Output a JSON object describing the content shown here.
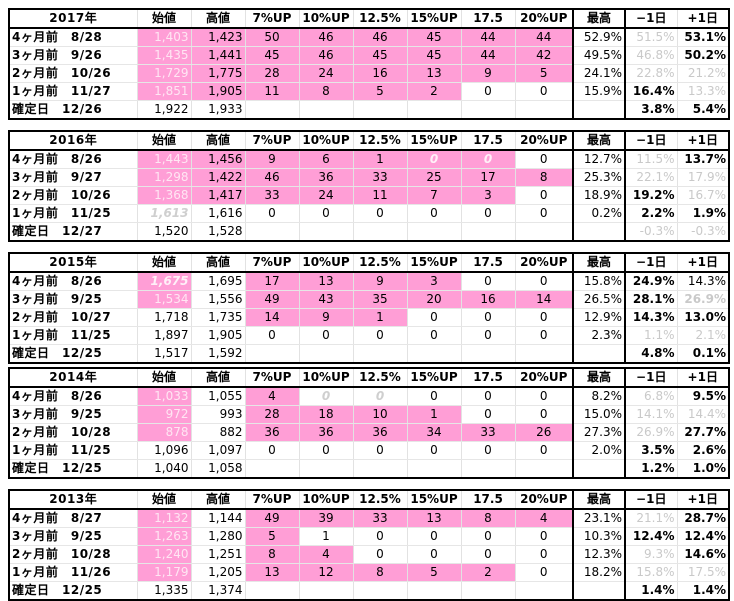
{
  "headers": [
    "始値",
    "高値",
    "7%UP",
    "10%UP",
    "12.5%",
    "15%UP",
    "17.5",
    "20%UP",
    "最高",
    "−1日",
    "+1日"
  ],
  "colors": {
    "pink": "#ff9ed6",
    "light_text": "#c9c9c9",
    "border": "#000000"
  },
  "blocks": [
    {
      "title": "2017年",
      "rows": [
        {
          "label": "4ヶ月前　8/28",
          "open": "1,403",
          "high": "1,423",
          "c7": "50",
          "c10": "46",
          "c125": "46",
          "c15": "45",
          "c175": "44",
          "c20": "44",
          "max": "52.9%",
          "m1": "51.5%",
          "p1": "53.1%"
        },
        {
          "label": "3ヶ月前　9/26",
          "open": "1,435",
          "high": "1,441",
          "c7": "45",
          "c10": "46",
          "c125": "45",
          "c15": "45",
          "c175": "44",
          "c20": "42",
          "max": "49.5%",
          "m1": "46.8%",
          "p1": "50.2%"
        },
        {
          "label": "2ヶ月前　10/26",
          "open": "1,729",
          "high": "1,775",
          "c7": "28",
          "c10": "24",
          "c125": "16",
          "c15": "13",
          "c175": "9",
          "c20": "5",
          "max": "24.1%",
          "m1": "22.8%",
          "p1": "21.2%"
        },
        {
          "label": "1ヶ月前　11/27",
          "open": "1,851",
          "high": "1,905",
          "c7": "11",
          "c10": "8",
          "c125": "5",
          "c15": "2",
          "c175": "0",
          "c20": "0",
          "max": "15.9%",
          "m1": "16.4%",
          "p1": "13.3%"
        }
      ],
      "final": {
        "label": "確定日　12/26",
        "open": "1,922",
        "high": "1,933",
        "m1": "3.8%",
        "p1": "5.4%"
      }
    },
    {
      "title": "2016年",
      "rows": [
        {
          "label": "4ヶ月前　8/26",
          "open": "1,443",
          "high": "1,456",
          "c7": "9",
          "c10": "6",
          "c125": "1",
          "c15": "0",
          "c175": "0",
          "c20": "0",
          "max": "12.7%",
          "m1": "11.5%",
          "p1": "13.7%"
        },
        {
          "label": "3ヶ月前　9/27",
          "open": "1,298",
          "high": "1,422",
          "c7": "46",
          "c10": "36",
          "c125": "33",
          "c15": "25",
          "c175": "17",
          "c20": "8",
          "max": "25.3%",
          "m1": "22.1%",
          "p1": "17.9%"
        },
        {
          "label": "2ヶ月前　10/26",
          "open": "1,368",
          "high": "1,417",
          "c7": "33",
          "c10": "24",
          "c125": "11",
          "c15": "7",
          "c175": "3",
          "c20": "0",
          "max": "18.9%",
          "m1": "19.2%",
          "p1": "16.7%"
        },
        {
          "label": "1ヶ月前　11/25",
          "open": "1,613",
          "high": "1,616",
          "c7": "0",
          "c10": "0",
          "c125": "0",
          "c15": "0",
          "c175": "0",
          "c20": "0",
          "max": "0.2%",
          "m1": "2.2%",
          "p1": "1.9%"
        }
      ],
      "final": {
        "label": "確定日　12/27",
        "open": "1,520",
        "high": "1,528",
        "m1": "-0.3%",
        "p1": "-0.3%"
      }
    },
    {
      "title": "2015年",
      "rows": [
        {
          "label": "4ヶ月前　8/26",
          "open": "1,675",
          "high": "1,695",
          "c7": "17",
          "c10": "13",
          "c125": "9",
          "c15": "3",
          "c175": "0",
          "c20": "0",
          "max": "15.8%",
          "m1": "24.9%",
          "p1": "14.3%"
        },
        {
          "label": "3ヶ月前　9/25",
          "open": "1,534",
          "high": "1,556",
          "c7": "49",
          "c10": "43",
          "c125": "35",
          "c15": "20",
          "c175": "16",
          "c20": "14",
          "max": "26.5%",
          "m1": "28.1%",
          "p1": "26.9%"
        },
        {
          "label": "2ヶ月前　10/27",
          "open": "1,718",
          "high": "1,735",
          "c7": "14",
          "c10": "9",
          "c125": "1",
          "c15": "0",
          "c175": "0",
          "c20": "0",
          "max": "12.9%",
          "m1": "14.3%",
          "p1": "13.0%"
        },
        {
          "label": "1ヶ月前　11/25",
          "open": "1,897",
          "high": "1,905",
          "c7": "0",
          "c10": "0",
          "c125": "0",
          "c15": "0",
          "c175": "0",
          "c20": "0",
          "max": "2.3%",
          "m1": "1.1%",
          "p1": "2.1%"
        }
      ],
      "final": {
        "label": "確定日　12/25",
        "open": "1,517",
        "high": "1,592",
        "m1": "4.8%",
        "p1": "0.1%"
      }
    },
    {
      "title": "2014年",
      "rows": [
        {
          "label": "4ヶ月前　8/26",
          "open": "1,033",
          "high": "1,055",
          "c7": "4",
          "c10": "0",
          "c125": "0",
          "c15": "0",
          "c175": "0",
          "c20": "0",
          "max": "8.2%",
          "m1": "6.8%",
          "p1": "9.5%"
        },
        {
          "label": "3ヶ月前　9/25",
          "open": "972",
          "high": "993",
          "c7": "28",
          "c10": "18",
          "c125": "10",
          "c15": "1",
          "c175": "0",
          "c20": "0",
          "max": "15.0%",
          "m1": "14.1%",
          "p1": "14.4%"
        },
        {
          "label": "2ヶ月前　10/28",
          "open": "878",
          "high": "882",
          "c7": "36",
          "c10": "36",
          "c125": "36",
          "c15": "34",
          "c175": "33",
          "c20": "26",
          "max": "27.3%",
          "m1": "26.9%",
          "p1": "27.7%"
        },
        {
          "label": "1ヶ月前　11/25",
          "open": "1,096",
          "high": "1,097",
          "c7": "0",
          "c10": "0",
          "c125": "0",
          "c15": "0",
          "c175": "0",
          "c20": "0",
          "max": "2.0%",
          "m1": "3.5%",
          "p1": "2.6%"
        }
      ],
      "final": {
        "label": "確定日　12/25",
        "open": "1,040",
        "high": "1,058",
        "m1": "1.2%",
        "p1": "1.0%"
      }
    },
    {
      "title": "2013年",
      "rows": [
        {
          "label": "4ヶ月前　8/27",
          "open": "1,132",
          "high": "1,144",
          "c7": "49",
          "c10": "39",
          "c125": "33",
          "c15": "13",
          "c175": "8",
          "c20": "4",
          "max": "23.1%",
          "m1": "21.1%",
          "p1": "28.7%"
        },
        {
          "label": "3ヶ月前　9/25",
          "open": "1,263",
          "high": "1,280",
          "c7": "5",
          "c10": "1",
          "c125": "0",
          "c15": "0",
          "c175": "0",
          "c20": "0",
          "max": "10.3%",
          "m1": "12.4%",
          "p1": "12.4%"
        },
        {
          "label": "2ヶ月前　10/28",
          "open": "1,240",
          "high": "1,251",
          "c7": "8",
          "c10": "4",
          "c125": "0",
          "c15": "0",
          "c175": "0",
          "c20": "0",
          "max": "12.3%",
          "m1": "9.3%",
          "p1": "14.6%"
        },
        {
          "label": "1ヶ月前　11/26",
          "open": "1,179",
          "high": "1,205",
          "c7": "13",
          "c10": "12",
          "c125": "8",
          "c15": "5",
          "c175": "2",
          "c20": "0",
          "max": "18.2%",
          "m1": "15.8%",
          "p1": "17.5%"
        }
      ],
      "final": {
        "label": "確定日　12/25",
        "open": "1,335",
        "high": "1,374",
        "m1": "1.4%",
        "p1": "1.4%"
      }
    }
  ]
}
